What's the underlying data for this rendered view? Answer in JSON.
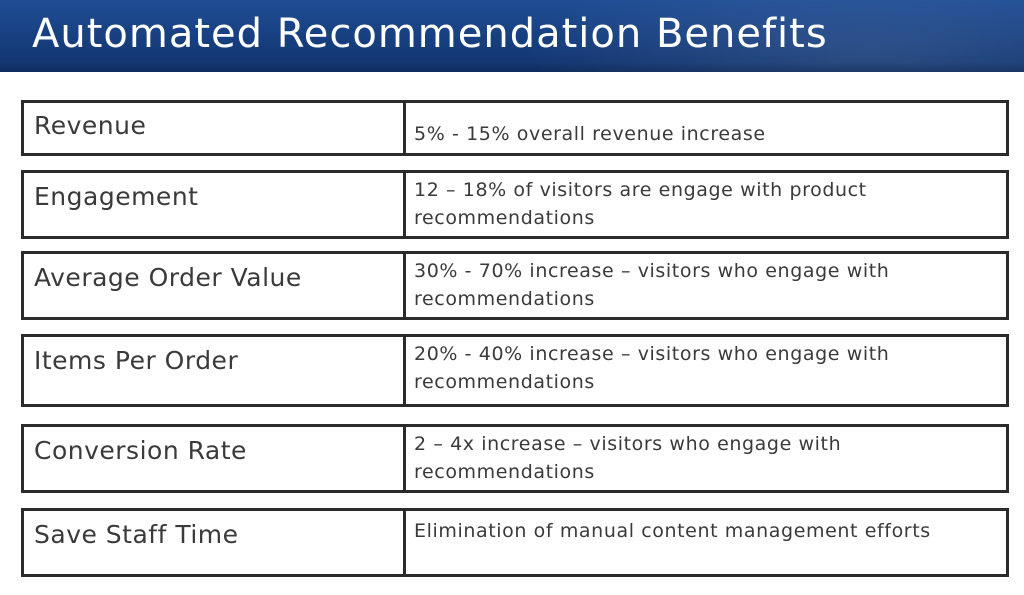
{
  "title": "Automated Recommendation Benefits",
  "rows": [
    {
      "label": "Revenue",
      "description": "5% - 15% overall revenue increase"
    },
    {
      "label": "Engagement",
      "description": "12 – 18% of visitors are engage with product recommendations"
    },
    {
      "label": "Average Order Value",
      "description": "30% - 70% increase – visitors who engage with recommendations"
    },
    {
      "label": "Items Per Order",
      "description": "20% - 40% increase – visitors who engage with recommendations"
    },
    {
      "label": "Conversion Rate",
      "description": "2 – 4x increase – visitors who engage with recommendations"
    },
    {
      "label": "Save Staff Time",
      "description": "Elimination of manual content management efforts"
    }
  ],
  "colors": {
    "title_bar": "#1a4489",
    "title_text": "#ffffff",
    "border": "#2b2b2b",
    "text": "#3a3a3a"
  }
}
